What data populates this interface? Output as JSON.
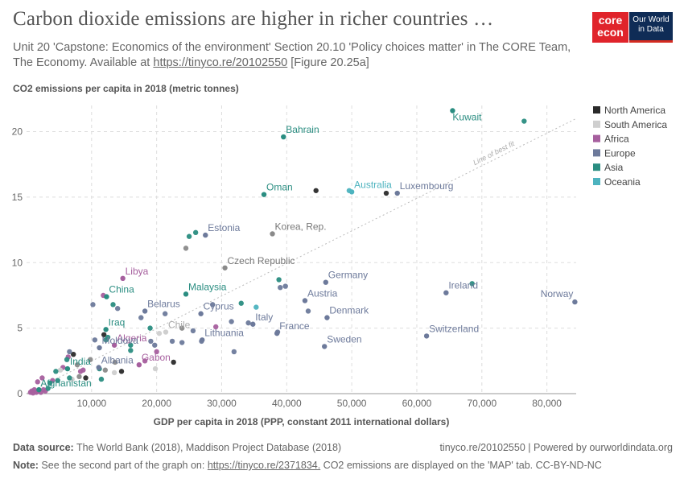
{
  "header": {
    "title": "Carbon dioxide emissions are higher in richer countries …",
    "subtitle_prefix": "Unit 20 'Capstone: Economics of the environment' Section 20.10 'Policy choices matter' in The CORE Team, The Economy. Available at ",
    "subtitle_link": "https://tinyco.re/20102550",
    "subtitle_suffix": " [Figure 20.25a]"
  },
  "logos": {
    "core_line1": "core",
    "core_line2": "econ",
    "owid_line1": "Our World",
    "owid_line2": "in Data"
  },
  "footer": {
    "source_label": "Data source:",
    "source_text": " The World Bank (2018), Maddison Project Database (2018)",
    "right_text": "tinyco.re/20102550 | Powered by ourworldindata.org",
    "note_label": "Note:",
    "note_prefix": " See the second part of the graph on: ",
    "note_link": "https://tinyco.re/2371834.",
    "note_suffix": " CO2 emissions are displayed on the 'MAP' tab. CC-BY-ND-NC"
  },
  "colors": {
    "North America": "#2a2a2a",
    "South America": "#cfcfcf",
    "Africa": "#a65f9e",
    "Europe": "#6d7a9b",
    "Asia": "#2a8d81",
    "Oceania": "#4db3bf",
    "Other": "#8a8a8a"
  },
  "chart_data": {
    "type": "scatter",
    "ylabel": "CO2 emissions per capita in 2018 (metric tonnes)",
    "xlabel": "GDP per capita in 2018 (PPP, constant 2011 international dollars)",
    "xlim": [
      0,
      84500
    ],
    "ylim": [
      0,
      22
    ],
    "x_ticks": [
      {
        "v": 10000,
        "label": "10,000"
      },
      {
        "v": 20000,
        "label": "20,000"
      },
      {
        "v": 30000,
        "label": "30,000"
      },
      {
        "v": 40000,
        "label": "40,000"
      },
      {
        "v": 50000,
        "label": "50,000"
      },
      {
        "v": 60000,
        "label": "60,000"
      },
      {
        "v": 70000,
        "label": "70,000"
      },
      {
        "v": 80000,
        "label": "80,000"
      }
    ],
    "y_ticks": [
      {
        "v": 0,
        "label": "0"
      },
      {
        "v": 5,
        "label": "5"
      },
      {
        "v": 10,
        "label": "10"
      },
      {
        "v": 15,
        "label": "15"
      },
      {
        "v": 20,
        "label": "20"
      }
    ],
    "grid": true,
    "legend_position": "right",
    "legend": [
      "North America",
      "South America",
      "Africa",
      "Europe",
      "Asia",
      "Oceania"
    ],
    "trend_line": {
      "label": "Line of best fit",
      "from": [
        0,
        0
      ],
      "to": [
        84500,
        21
      ]
    },
    "labeled_points": [
      {
        "label": "Kuwait",
        "x": 65500,
        "y": 21.6,
        "region": "Asia"
      },
      {
        "label": "Bahrain",
        "x": 39500,
        "y": 19.6,
        "region": "Asia"
      },
      {
        "label": "Oman",
        "x": 36500,
        "y": 15.2,
        "region": "Asia"
      },
      {
        "label": "Australia",
        "x": 50000,
        "y": 15.4,
        "region": "Oceania"
      },
      {
        "label": "Luxembourg",
        "x": 57000,
        "y": 15.3,
        "region": "Europe"
      },
      {
        "label": "Estonia",
        "x": 27500,
        "y": 12.1,
        "region": "Europe"
      },
      {
        "label": "Korea, Rep.",
        "x": 37800,
        "y": 12.2,
        "region": "Other"
      },
      {
        "label": "Czech Republic",
        "x": 30500,
        "y": 9.6,
        "region": "Other"
      },
      {
        "label": "Libya",
        "x": 14800,
        "y": 8.8,
        "region": "Africa"
      },
      {
        "label": "Germany",
        "x": 46000,
        "y": 8.5,
        "region": "Europe"
      },
      {
        "label": "China",
        "x": 12300,
        "y": 7.4,
        "region": "Asia"
      },
      {
        "label": "Malaysia",
        "x": 24500,
        "y": 7.6,
        "region": "Asia"
      },
      {
        "label": "Ireland",
        "x": 64500,
        "y": 7.7,
        "region": "Europe"
      },
      {
        "label": "Norway",
        "x": 84300,
        "y": 7.0,
        "region": "Europe"
      },
      {
        "label": "Austria",
        "x": 42800,
        "y": 7.1,
        "region": "Europe"
      },
      {
        "label": "Belarus",
        "x": 18200,
        "y": 6.3,
        "region": "Europe"
      },
      {
        "label": "Cyprus",
        "x": 26800,
        "y": 6.1,
        "region": "Europe"
      },
      {
        "label": "Denmark",
        "x": 46200,
        "y": 5.8,
        "region": "Europe"
      },
      {
        "label": "Italy",
        "x": 34800,
        "y": 5.3,
        "region": "Europe"
      },
      {
        "label": "France",
        "x": 38500,
        "y": 4.6,
        "region": "Europe"
      },
      {
        "label": "Chile",
        "x": 21400,
        "y": 4.7,
        "region": "South America"
      },
      {
        "label": "Lithuania",
        "x": 27000,
        "y": 4.1,
        "region": "Europe"
      },
      {
        "label": "Switzerland",
        "x": 61500,
        "y": 4.4,
        "region": "Europe"
      },
      {
        "label": "Iraq",
        "x": 12200,
        "y": 4.9,
        "region": "Asia"
      },
      {
        "label": "Sweden",
        "x": 45800,
        "y": 3.6,
        "region": "Europe"
      },
      {
        "label": "Algeria",
        "x": 13500,
        "y": 3.7,
        "region": "Africa"
      },
      {
        "label": "Moldova",
        "x": 11200,
        "y": 3.5,
        "region": "Europe"
      },
      {
        "label": "Gabon",
        "x": 17300,
        "y": 2.2,
        "region": "Africa"
      },
      {
        "label": "Albania",
        "x": 11100,
        "y": 2.0,
        "region": "Europe"
      },
      {
        "label": "India",
        "x": 6300,
        "y": 1.9,
        "region": "Asia"
      },
      {
        "label": "Afghanistan",
        "x": 1900,
        "y": 0.3,
        "region": "Asia"
      }
    ],
    "points": [
      {
        "x": 76500,
        "y": 20.8,
        "region": "Asia"
      },
      {
        "x": 44500,
        "y": 15.5,
        "region": "North America"
      },
      {
        "x": 55300,
        "y": 15.3,
        "region": "North America"
      },
      {
        "x": 49600,
        "y": 15.5,
        "region": "Oceania"
      },
      {
        "x": 25000,
        "y": 12.0,
        "region": "Asia"
      },
      {
        "x": 26000,
        "y": 12.3,
        "region": "Asia"
      },
      {
        "x": 24500,
        "y": 11.1,
        "region": "Other"
      },
      {
        "x": 38800,
        "y": 8.7,
        "region": "Asia"
      },
      {
        "x": 39800,
        "y": 8.2,
        "region": "Europe"
      },
      {
        "x": 39000,
        "y": 8.1,
        "region": "Europe"
      },
      {
        "x": 68500,
        "y": 8.4,
        "region": "Asia"
      },
      {
        "x": 10200,
        "y": 6.8,
        "region": "Europe"
      },
      {
        "x": 11800,
        "y": 7.5,
        "region": "Africa"
      },
      {
        "x": 13300,
        "y": 6.8,
        "region": "Asia"
      },
      {
        "x": 14000,
        "y": 6.5,
        "region": "Europe"
      },
      {
        "x": 33000,
        "y": 6.9,
        "region": "Asia"
      },
      {
        "x": 35300,
        "y": 6.6,
        "region": "Oceania"
      },
      {
        "x": 43300,
        "y": 6.3,
        "region": "Europe"
      },
      {
        "x": 21300,
        "y": 6.1,
        "region": "Europe"
      },
      {
        "x": 28600,
        "y": 6.8,
        "region": "Europe"
      },
      {
        "x": 17600,
        "y": 5.8,
        "region": "Europe"
      },
      {
        "x": 31500,
        "y": 5.5,
        "region": "Europe"
      },
      {
        "x": 34100,
        "y": 5.4,
        "region": "Europe"
      },
      {
        "x": 29100,
        "y": 5.1,
        "region": "Africa"
      },
      {
        "x": 23900,
        "y": 5.0,
        "region": "Other"
      },
      {
        "x": 25600,
        "y": 4.8,
        "region": "Europe"
      },
      {
        "x": 20400,
        "y": 4.6,
        "region": "South America"
      },
      {
        "x": 11900,
        "y": 4.5,
        "region": "North America"
      },
      {
        "x": 12500,
        "y": 4.3,
        "region": "Asia"
      },
      {
        "x": 10500,
        "y": 4.1,
        "region": "Europe"
      },
      {
        "x": 12200,
        "y": 4.1,
        "region": "Asia"
      },
      {
        "x": 19100,
        "y": 4.0,
        "region": "Europe"
      },
      {
        "x": 19700,
        "y": 3.7,
        "region": "Europe"
      },
      {
        "x": 16000,
        "y": 3.7,
        "region": "Asia"
      },
      {
        "x": 22400,
        "y": 4.0,
        "region": "Europe"
      },
      {
        "x": 23900,
        "y": 3.9,
        "region": "Europe"
      },
      {
        "x": 26900,
        "y": 4.0,
        "region": "Europe"
      },
      {
        "x": 38600,
        "y": 4.7,
        "region": "Europe"
      },
      {
        "x": 19000,
        "y": 5.0,
        "region": "Asia"
      },
      {
        "x": 16000,
        "y": 3.3,
        "region": "Asia"
      },
      {
        "x": 20000,
        "y": 3.2,
        "region": "Africa"
      },
      {
        "x": 31900,
        "y": 3.2,
        "region": "Europe"
      },
      {
        "x": 22600,
        "y": 2.4,
        "region": "North America"
      },
      {
        "x": 18200,
        "y": 2.5,
        "region": "Africa"
      },
      {
        "x": 19800,
        "y": 1.9,
        "region": "South America"
      },
      {
        "x": 14600,
        "y": 1.7,
        "region": "North America"
      },
      {
        "x": 13500,
        "y": 1.6,
        "region": "South America"
      },
      {
        "x": 12100,
        "y": 1.8,
        "region": "Other"
      },
      {
        "x": 11200,
        "y": 1.9,
        "region": "Asia"
      },
      {
        "x": 11500,
        "y": 1.1,
        "region": "Asia"
      },
      {
        "x": 13600,
        "y": 2.4,
        "region": "Other"
      },
      {
        "x": 9800,
        "y": 2.6,
        "region": "Other"
      },
      {
        "x": 8700,
        "y": 1.8,
        "region": "Africa"
      },
      {
        "x": 8300,
        "y": 1.7,
        "region": "Africa"
      },
      {
        "x": 7200,
        "y": 3.0,
        "region": "North America"
      },
      {
        "x": 6600,
        "y": 3.2,
        "region": "Europe"
      },
      {
        "x": 6400,
        "y": 2.8,
        "region": "Africa"
      },
      {
        "x": 6200,
        "y": 2.6,
        "region": "Asia"
      },
      {
        "x": 7800,
        "y": 2.2,
        "region": "Other"
      },
      {
        "x": 9100,
        "y": 1.2,
        "region": "North America"
      },
      {
        "x": 8100,
        "y": 1.3,
        "region": "Other"
      },
      {
        "x": 7000,
        "y": 1.1,
        "region": "South America"
      },
      {
        "x": 6600,
        "y": 1.2,
        "region": "Asia"
      },
      {
        "x": 5600,
        "y": 2.0,
        "region": "Africa"
      },
      {
        "x": 5200,
        "y": 1.8,
        "region": "South America"
      },
      {
        "x": 4500,
        "y": 1.7,
        "region": "Asia"
      },
      {
        "x": 4800,
        "y": 1.0,
        "region": "Asia"
      },
      {
        "x": 4000,
        "y": 1.0,
        "region": "Africa"
      },
      {
        "x": 3600,
        "y": 0.8,
        "region": "Asia"
      },
      {
        "x": 2400,
        "y": 1.2,
        "region": "Africa"
      },
      {
        "x": 1700,
        "y": 0.9,
        "region": "Africa"
      },
      {
        "x": 1200,
        "y": 0.3,
        "region": "Africa"
      },
      {
        "x": 800,
        "y": 0.2,
        "region": "Africa"
      },
      {
        "x": 1500,
        "y": 0.1,
        "region": "Africa"
      },
      {
        "x": 2200,
        "y": 0.1,
        "region": "Africa"
      },
      {
        "x": 2900,
        "y": 0.2,
        "region": "Africa"
      },
      {
        "x": 3300,
        "y": 0.4,
        "region": "Asia"
      },
      {
        "x": 1000,
        "y": 0.05,
        "region": "Africa"
      },
      {
        "x": 2600,
        "y": 0.3,
        "region": "Africa"
      },
      {
        "x": 600,
        "y": 0.1,
        "region": "Africa"
      },
      {
        "x": 1800,
        "y": 0.2,
        "region": "Africa"
      }
    ]
  }
}
